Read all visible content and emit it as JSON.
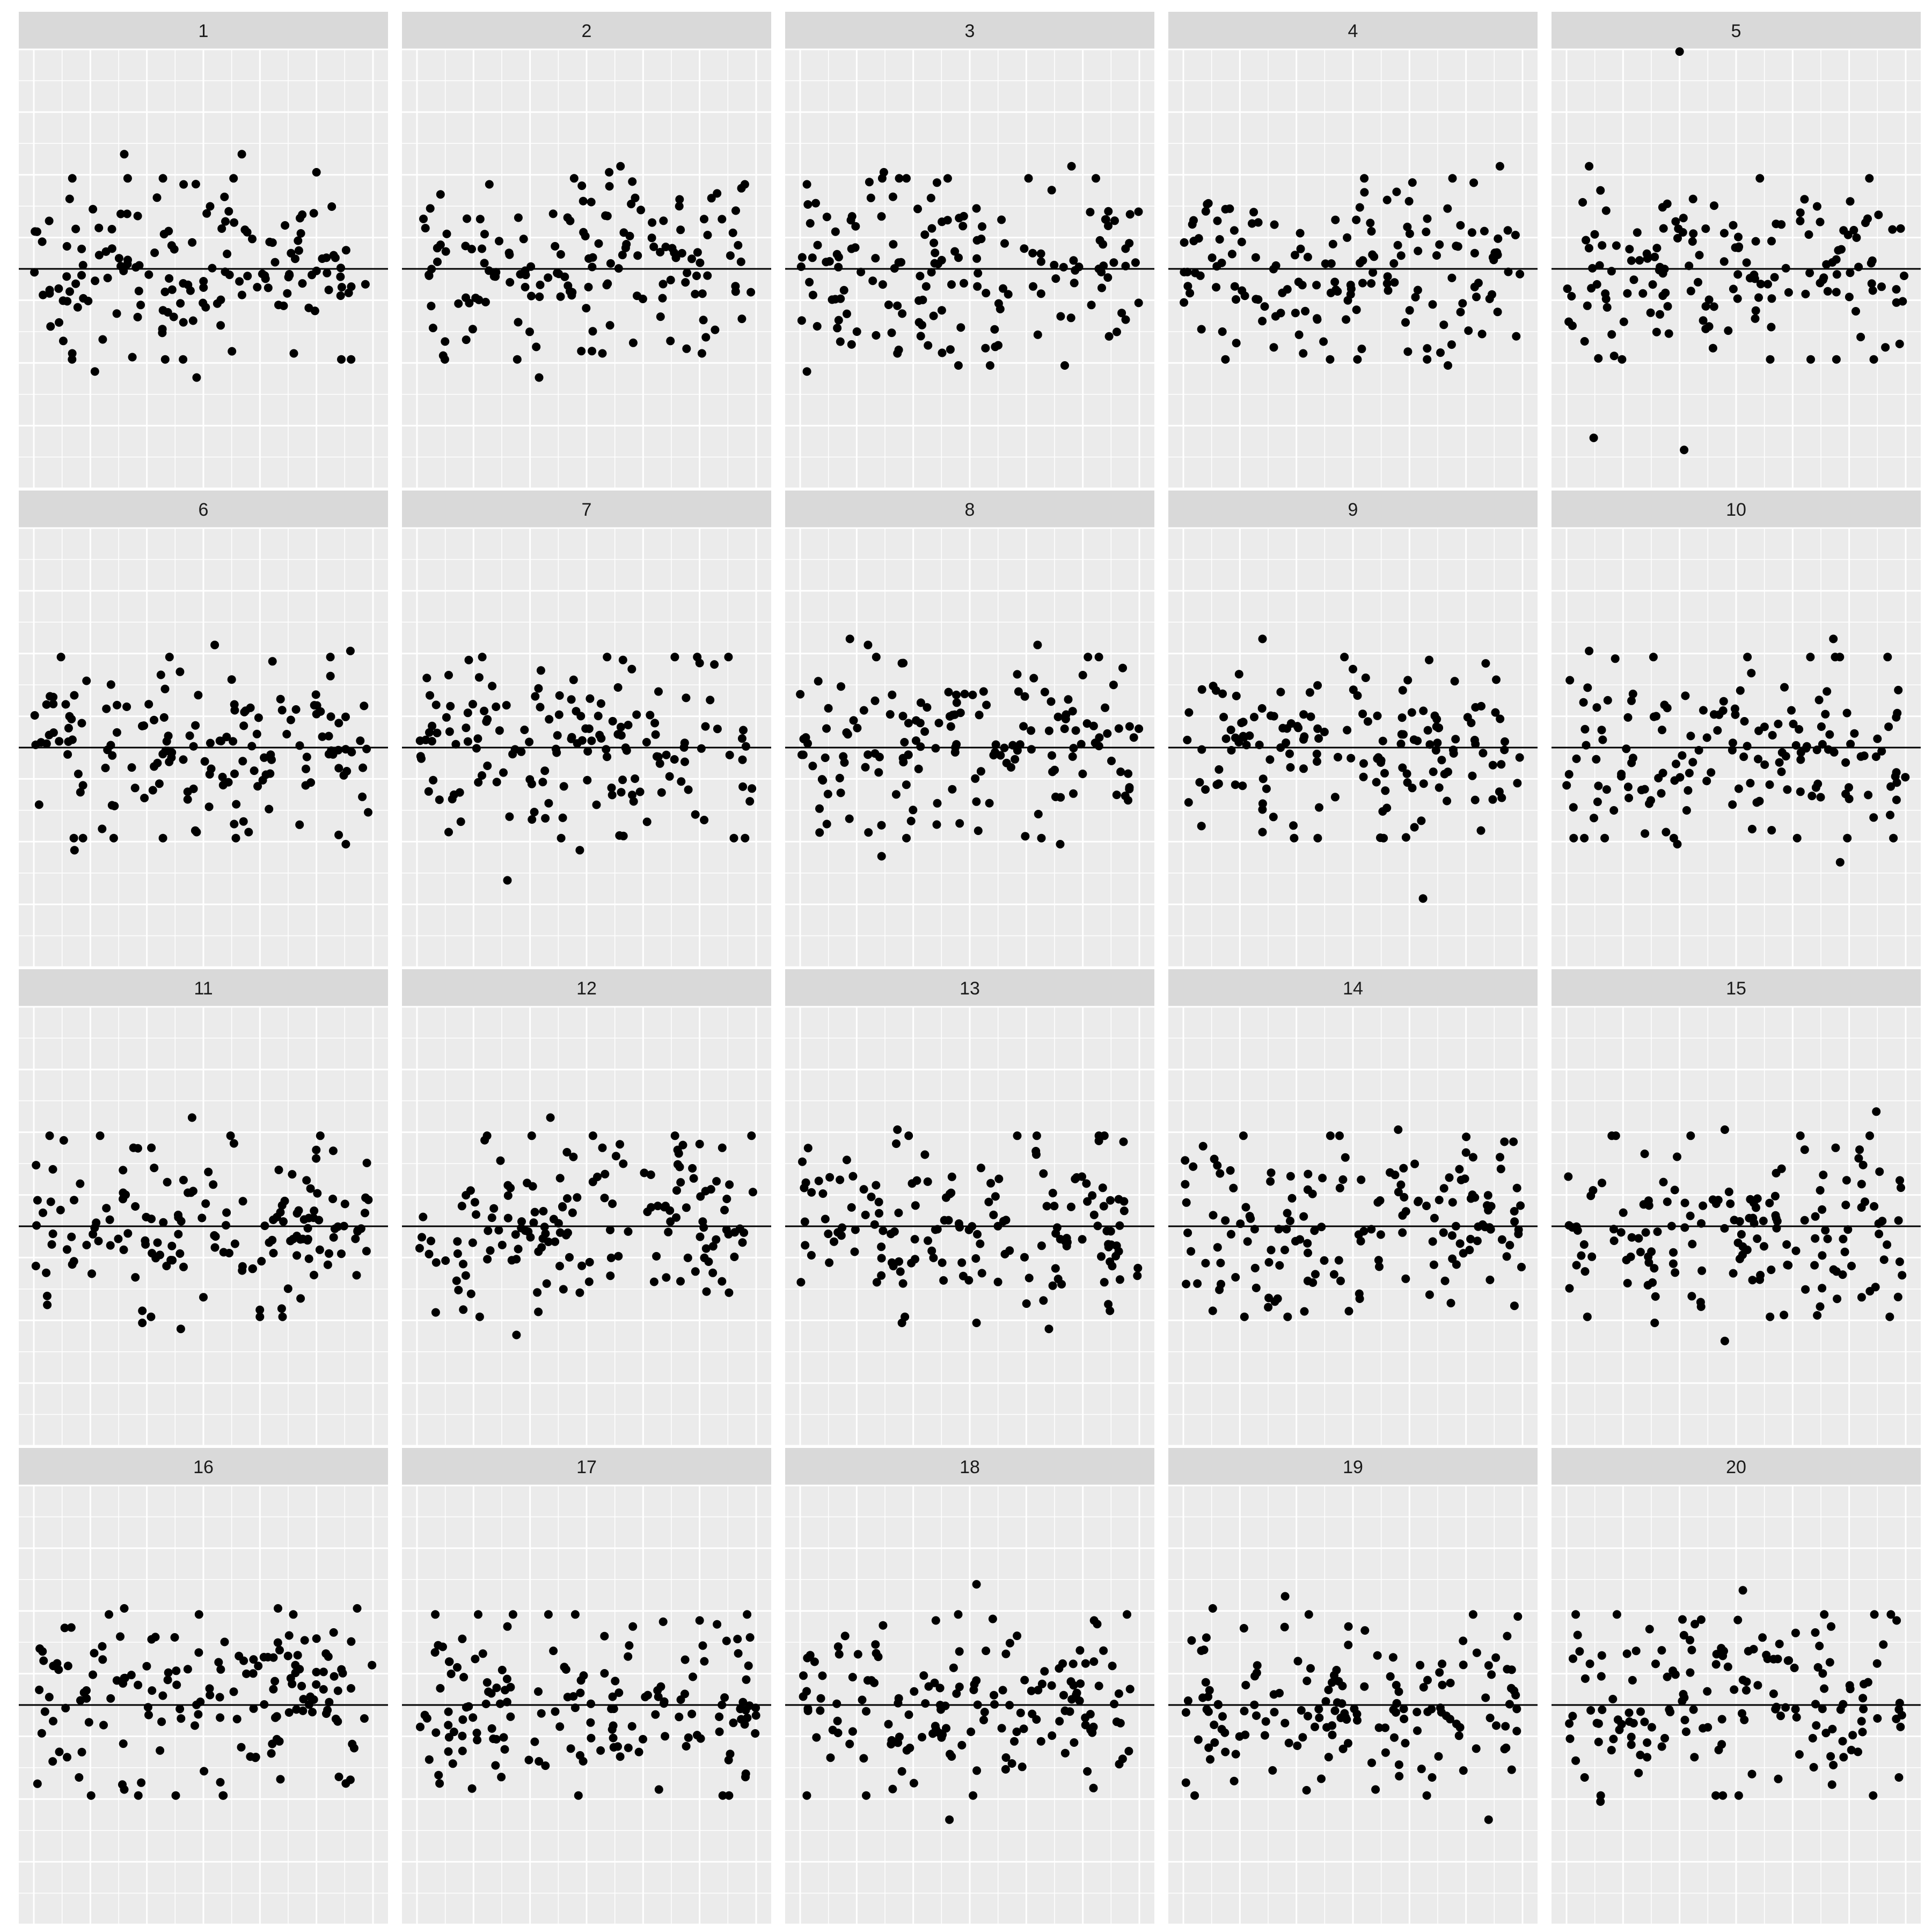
{
  "chart_data": {
    "type": "scatter",
    "layout": "facet-grid",
    "rows": 4,
    "cols": 5,
    "title": "",
    "xlabel": "",
    "ylabel": "",
    "grid": true,
    "x_range": [
      0,
      150
    ],
    "y_range": [
      -4,
      4
    ],
    "reference_line_y": 0,
    "colors": {
      "panel_bg": "#ebebeb",
      "strip_bg": "#d9d9d9",
      "grid": "#ffffff",
      "points": "#000000",
      "reference_line": "#000000",
      "strip_text": "#1a1a1a"
    },
    "panels": [
      {
        "label": "1",
        "n": 150,
        "seed": 101,
        "extremes": [
          [
            40,
            1.9
          ],
          [
            92,
            1.9
          ],
          [
            125,
            1.6
          ],
          [
            27,
            -1.7
          ],
          [
            72,
            -1.8
          ],
          [
            115,
            -1.4
          ],
          [
            17,
            -1.4
          ],
          [
            66,
            -1.5
          ]
        ]
      },
      {
        "label": "2",
        "n": 150,
        "seed": 202,
        "extremes": [
          [
            90,
            1.7
          ],
          [
            85,
            1.6
          ],
          [
            54,
            -1.8
          ],
          [
            126,
            -1.4
          ],
          [
            82,
            -1.4
          ],
          [
            32,
            1.4
          ],
          [
            145,
            1.4
          ]
        ]
      },
      {
        "label": "3",
        "n": 150,
        "seed": 303,
        "extremes": [
          [
            37,
            1.6
          ],
          [
            3,
            1.4
          ],
          [
            3,
            -1.7
          ],
          [
            84,
            -1.6
          ],
          [
            120,
            1.7
          ],
          [
            117,
            -1.6
          ],
          [
            70,
            -1.6
          ],
          [
            43,
            -1.4
          ],
          [
            101,
            1.5
          ]
        ]
      },
      {
        "label": "4",
        "n": 150,
        "seed": 404,
        "extremes": [
          [
            140,
            1.7
          ],
          [
            80,
            1.5
          ],
          [
            117,
            -1.6
          ],
          [
            77,
            -1.5
          ],
          [
            53,
            -1.4
          ],
          [
            40,
            -1.3
          ],
          [
            8,
            -1.0
          ]
        ]
      },
      {
        "label": "5",
        "n": 150,
        "seed": 505,
        "extremes": [
          [
            50,
            3.6
          ],
          [
            10,
            1.7
          ],
          [
            12,
            -2.8
          ],
          [
            52,
            -3.0
          ],
          [
            15,
            1.3
          ],
          [
            108,
            -1.5
          ],
          [
            141,
            -1.3
          ],
          [
            8,
            -1.2
          ]
        ]
      },
      {
        "label": "6",
        "n": 150,
        "seed": 606,
        "extremes": [
          [
            80,
            1.7
          ],
          [
            140,
            1.6
          ],
          [
            18,
            -1.7
          ],
          [
            138,
            -1.6
          ],
          [
            95,
            -1.4
          ],
          [
            72,
            -1.4
          ],
          [
            12,
            1.5
          ],
          [
            60,
            1.5
          ]
        ]
      },
      {
        "label": "7",
        "n": 150,
        "seed": 707,
        "extremes": [
          [
            40,
            -2.2
          ],
          [
            72,
            -1.7
          ],
          [
            14,
            1.2
          ],
          [
            125,
            1.4
          ],
          [
            95,
            1.3
          ],
          [
            14,
            -1.4
          ],
          [
            127,
            -1.2
          ]
        ]
      },
      {
        "label": "8",
        "n": 150,
        "seed": 808,
        "extremes": [
          [
            22,
            1.8
          ],
          [
            30,
            1.7
          ],
          [
            105,
            1.7
          ],
          [
            36,
            -1.8
          ],
          [
            115,
            -1.6
          ],
          [
            47,
            -1.5
          ],
          [
            8,
            1.1
          ],
          [
            125,
            1.2
          ]
        ]
      },
      {
        "label": "9",
        "n": 150,
        "seed": 909,
        "extremes": [
          [
            35,
            1.8
          ],
          [
            106,
            -2.5
          ],
          [
            8,
            -1.3
          ],
          [
            35,
            -1.4
          ],
          [
            75,
            1.3
          ],
          [
            90,
            -1.0
          ],
          [
            120,
            1.1
          ]
        ]
      },
      {
        "label": "10",
        "n": 150,
        "seed": 1010,
        "extremes": [
          [
            118,
            1.8
          ],
          [
            10,
            1.6
          ],
          [
            121,
            -1.9
          ],
          [
            49,
            -1.6
          ],
          [
            44,
            -1.4
          ],
          [
            142,
            1.5
          ],
          [
            80,
            1.5
          ]
        ]
      },
      {
        "label": "11",
        "n": 150,
        "seed": 1111,
        "extremes": [
          [
            70,
            1.8
          ],
          [
            87,
            1.5
          ],
          [
            65,
            -1.7
          ],
          [
            48,
            -1.6
          ],
          [
            48,
            -1.4
          ],
          [
            110,
            -1.5
          ],
          [
            52,
            1.3
          ]
        ]
      },
      {
        "label": "12",
        "n": 150,
        "seed": 1212,
        "extremes": [
          [
            59,
            1.8
          ],
          [
            44,
            -1.8
          ],
          [
            82,
            1.3
          ],
          [
            135,
            1.3
          ],
          [
            31,
            1.5
          ],
          [
            138,
            -1.1
          ],
          [
            72,
            -1.1
          ]
        ]
      },
      {
        "label": "13",
        "n": 150,
        "seed": 1313,
        "extremes": [
          [
            43,
            1.6
          ],
          [
            48,
            1.5
          ],
          [
            78,
            -1.6
          ],
          [
            110,
            -1.7
          ],
          [
            137,
            -1.4
          ],
          [
            143,
            1.4
          ],
          [
            96,
            1.5
          ],
          [
            45,
            -1.6
          ]
        ]
      },
      {
        "label": "14",
        "n": 150,
        "seed": 1414,
        "extremes": [
          [
            65,
            1.5
          ],
          [
            27,
            -1.5
          ],
          [
            13,
            -1.4
          ],
          [
            146,
            1.4
          ],
          [
            142,
            1.4
          ],
          [
            95,
            1.6
          ],
          [
            78,
            -1.2
          ]
        ]
      },
      {
        "label": "15",
        "n": 150,
        "seed": 1515,
        "extremes": [
          [
            137,
            1.9
          ],
          [
            70,
            1.6
          ],
          [
            70,
            -1.9
          ],
          [
            39,
            -1.6
          ],
          [
            90,
            -1.5
          ],
          [
            20,
            1.5
          ],
          [
            119,
            1.3
          ]
        ]
      },
      {
        "label": "16",
        "n": 150,
        "seed": 1616,
        "extremes": [
          [
            40,
            1.6
          ],
          [
            108,
            1.6
          ],
          [
            143,
            1.6
          ],
          [
            138,
            -1.3
          ],
          [
            40,
            -1.4
          ],
          [
            20,
            -1.2
          ],
          [
            125,
            1.1
          ]
        ]
      },
      {
        "label": "17",
        "n": 150,
        "seed": 1717,
        "extremes": [
          [
            70,
            1.5
          ],
          [
            146,
            1.5
          ],
          [
            10,
            -1.3
          ],
          [
            138,
            -1.5
          ],
          [
            107,
            -1.4
          ],
          [
            40,
            1.3
          ],
          [
            125,
            1.4
          ]
        ]
      },
      {
        "label": "18",
        "n": 150,
        "seed": 1818,
        "extremes": [
          [
            78,
            2.0
          ],
          [
            66,
            -1.9
          ],
          [
            60,
            1.4
          ],
          [
            130,
            1.4
          ],
          [
            45,
            -1.1
          ],
          [
            127,
            -1.1
          ]
        ]
      },
      {
        "label": "19",
        "n": 150,
        "seed": 1919,
        "extremes": [
          [
            45,
            1.8
          ],
          [
            13,
            1.6
          ],
          [
            135,
            -1.9
          ],
          [
            5,
            -1.5
          ],
          [
            85,
            -1.4
          ],
          [
            110,
            -1.2
          ],
          [
            73,
            1.3
          ]
        ]
      },
      {
        "label": "20",
        "n": 150,
        "seed": 2020,
        "extremes": [
          [
            78,
            1.9
          ],
          [
            146,
            1.4
          ],
          [
            15,
            -1.6
          ],
          [
            66,
            -1.5
          ],
          [
            147,
            -1.2
          ],
          [
            8,
            -1.2
          ],
          [
            117,
            1.3
          ],
          [
            110,
            1.2
          ]
        ]
      }
    ]
  }
}
